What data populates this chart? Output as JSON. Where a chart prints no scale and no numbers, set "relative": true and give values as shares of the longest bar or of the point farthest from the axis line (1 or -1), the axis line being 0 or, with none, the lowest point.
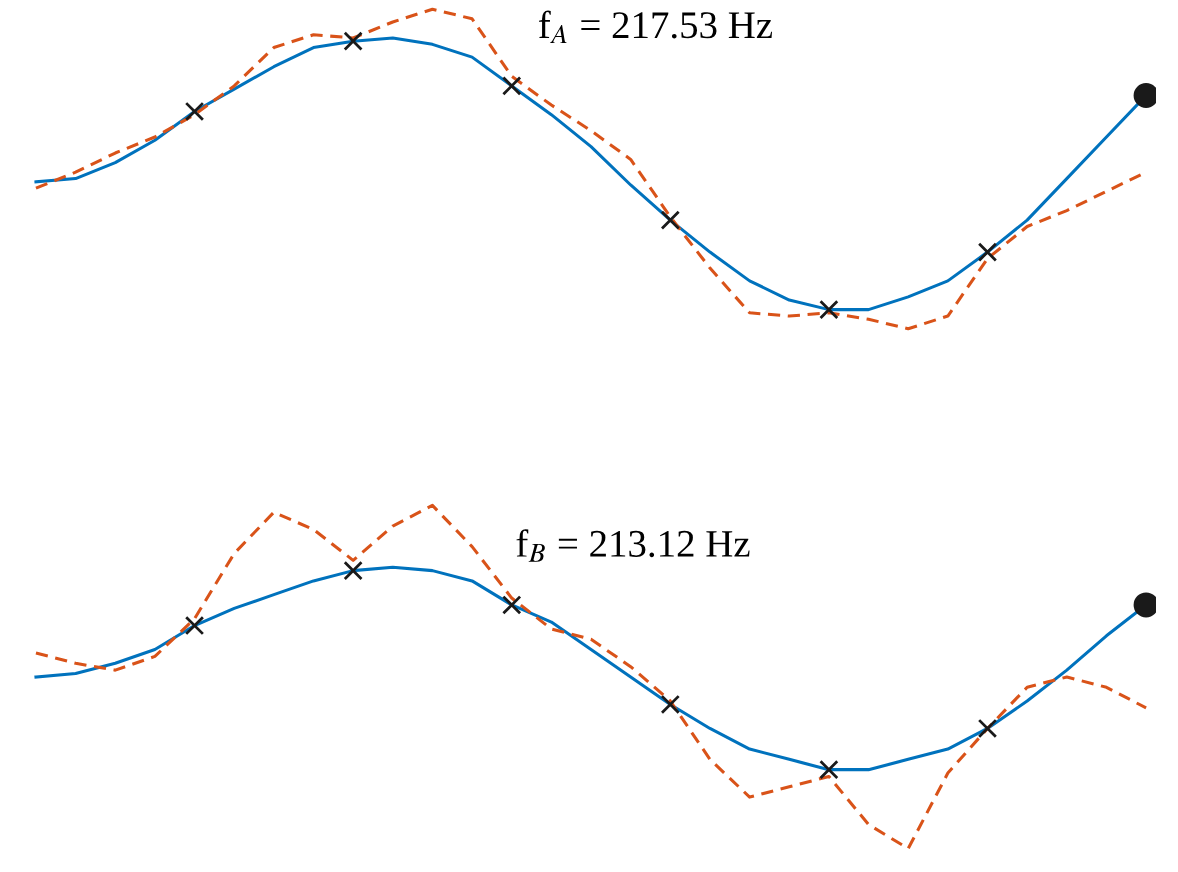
{
  "chart_data": [
    {
      "type": "line",
      "relative": true,
      "annotations": [
        "f$_{A}$ = 217.53 Hz"
      ],
      "categories": [
        null,
        null,
        null,
        null,
        null,
        null,
        null,
        null,
        null,
        null,
        null,
        null,
        null,
        null,
        null,
        null,
        null,
        null,
        null,
        null,
        null,
        null,
        null,
        null,
        null,
        null,
        null,
        null,
        null
      ],
      "series": [
        {
          "line_style": "solid",
          "color": "#0072bd",
          "values": [
            0.46,
            0.47,
            0.52,
            0.59,
            0.68,
            0.75,
            0.82,
            0.88,
            0.9,
            0.91,
            0.89,
            0.85,
            0.76,
            0.67,
            0.57,
            0.45,
            0.34,
            0.24,
            0.15,
            0.09,
            0.06,
            0.06,
            0.1,
            0.15,
            0.24,
            0.34,
            0.47,
            0.6,
            0.73
          ]
        },
        {
          "line_style": "dashed",
          "color": "#d95319",
          "values": [
            0.44,
            0.49,
            0.55,
            0.6,
            0.67,
            0.76,
            0.88,
            0.92,
            0.91,
            0.96,
            1,
            0.97,
            0.79,
            0.7,
            0.62,
            0.53,
            0.35,
            0.19,
            0.05,
            0.04,
            0.05,
            0.03,
            0,
            0.04,
            0.22,
            0.32,
            0.37,
            0.43,
            0.49
          ]
        }
      ]
    },
    {
      "type": "line",
      "relative": true,
      "annotations": [
        "f$_{B}$ = 213.12 Hz"
      ],
      "categories": [
        null,
        null,
        null,
        null,
        null,
        null,
        null,
        null,
        null,
        null,
        null,
        null,
        null,
        null,
        null,
        null,
        null,
        null,
        null,
        null,
        null,
        null,
        null,
        null,
        null,
        null,
        null,
        null,
        null
      ],
      "series": [
        {
          "line_style": "solid",
          "color": "#0072bd",
          "values": [
            0.5,
            0.51,
            0.54,
            0.58,
            0.65,
            0.7,
            0.74,
            0.78,
            0.81,
            0.82,
            0.81,
            0.78,
            0.71,
            0.66,
            0.58,
            0.5,
            0.42,
            0.35,
            0.29,
            0.26,
            0.23,
            0.23,
            0.26,
            0.29,
            0.35,
            0.43,
            0.52,
            0.62,
            0.71
          ]
        },
        {
          "line_style": "dashed",
          "color": "#d95319",
          "values": [
            0.57,
            0.54,
            0.52,
            0.56,
            0.67,
            0.86,
            0.98,
            0.93,
            0.84,
            0.94,
            1,
            0.88,
            0.73,
            0.64,
            0.61,
            0.53,
            0.43,
            0.26,
            0.15,
            0.18,
            0.21,
            0.07,
            0,
            0.22,
            0.35,
            0.47,
            0.5,
            0.47,
            0.41
          ]
        }
      ]
    }
  ]
}
